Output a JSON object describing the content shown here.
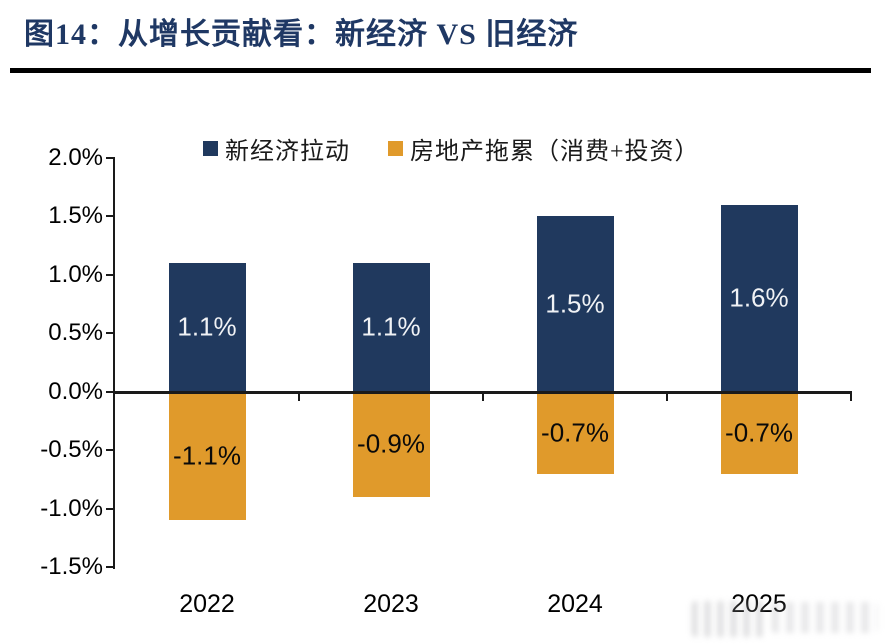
{
  "header": {
    "title": "图14：从增长贡献看：新经济 VS 旧经济"
  },
  "colors": {
    "title_navy": "#1F3864",
    "axis_black": "#1a1a1a",
    "background": "#ffffff"
  },
  "chart_data": {
    "type": "bar",
    "title": "",
    "xlabel": "",
    "ylabel": "",
    "categories": [
      "2022",
      "2023",
      "2024",
      "2025"
    ],
    "series": [
      {
        "name": "新经济拉动",
        "color": "#20395E",
        "values": [
          1.1,
          1.1,
          1.5,
          1.6
        ],
        "labels": [
          "1.1%",
          "1.1%",
          "1.5%",
          "1.6%"
        ],
        "label_color": "#F0F2F5"
      },
      {
        "name": "房地产拖累（消费+投资）",
        "color": "#E09A2B",
        "values": [
          -1.1,
          -0.9,
          -0.7,
          -0.7
        ],
        "labels": [
          "-1.1%",
          "-0.9%",
          "-0.7%",
          "-0.7%"
        ],
        "label_color": "#0a0a0a"
      }
    ],
    "y_ticks": [
      "2.0%",
      "1.5%",
      "1.0%",
      "0.5%",
      "0.0%",
      "-0.5%",
      "-1.0%",
      "-1.5%"
    ],
    "ylim": [
      -1.5,
      2.0
    ],
    "grid": false,
    "legend_position": "top"
  }
}
